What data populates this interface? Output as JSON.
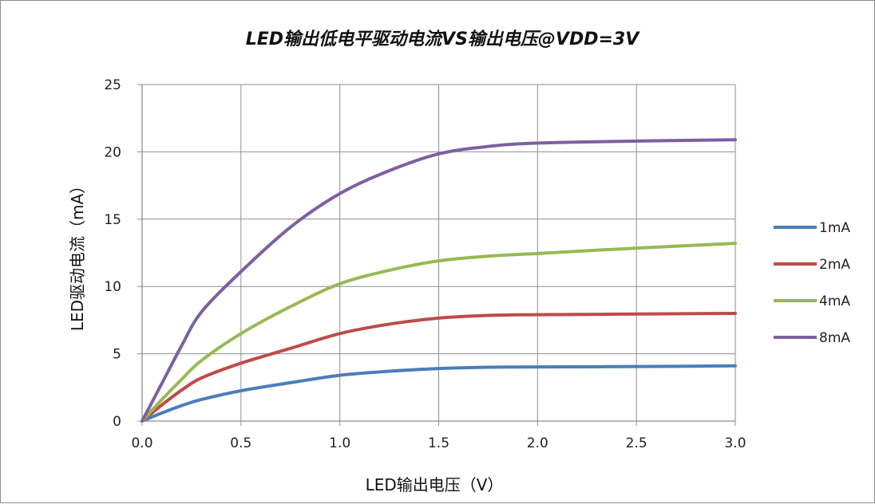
{
  "chart_data": {
    "type": "line",
    "title": "LED输出低电平驱动电流VS输出电压@VDD=3V",
    "xlabel": "LED输出电压（V）",
    "ylabel": "LED驱动电流（mA）",
    "xlim": [
      0,
      3
    ],
    "ylim": [
      0,
      25
    ],
    "x_ticks": [
      "0.0",
      "0.5",
      "1.0",
      "1.5",
      "2.0",
      "2.5",
      "3.0"
    ],
    "y_ticks": [
      "0",
      "5",
      "10",
      "15",
      "20",
      "25"
    ],
    "grid": true,
    "legend_position": "right",
    "series": [
      {
        "name": "1mA",
        "color": "#4a7ebb",
        "points": [
          [
            0.0,
            0.0
          ],
          [
            0.1,
            0.6
          ],
          [
            0.2,
            1.15
          ],
          [
            0.3,
            1.6
          ],
          [
            0.5,
            2.25
          ],
          [
            0.75,
            2.85
          ],
          [
            1.0,
            3.4
          ],
          [
            1.25,
            3.7
          ],
          [
            1.5,
            3.9
          ],
          [
            1.75,
            4.0
          ],
          [
            2.0,
            4.02
          ],
          [
            2.5,
            4.05
          ],
          [
            3.0,
            4.1
          ]
        ]
      },
      {
        "name": "2mA",
        "color": "#be4b48",
        "points": [
          [
            0.0,
            0.0
          ],
          [
            0.1,
            1.2
          ],
          [
            0.2,
            2.3
          ],
          [
            0.3,
            3.2
          ],
          [
            0.5,
            4.3
          ],
          [
            0.75,
            5.4
          ],
          [
            1.0,
            6.5
          ],
          [
            1.25,
            7.2
          ],
          [
            1.5,
            7.65
          ],
          [
            1.75,
            7.85
          ],
          [
            2.0,
            7.9
          ],
          [
            2.5,
            7.95
          ],
          [
            3.0,
            8.0
          ]
        ]
      },
      {
        "name": "4mA",
        "color": "#98b954",
        "points": [
          [
            0.0,
            0.0
          ],
          [
            0.1,
            1.6
          ],
          [
            0.2,
            3.1
          ],
          [
            0.3,
            4.5
          ],
          [
            0.5,
            6.5
          ],
          [
            0.75,
            8.5
          ],
          [
            1.0,
            10.2
          ],
          [
            1.25,
            11.2
          ],
          [
            1.5,
            11.9
          ],
          [
            1.75,
            12.25
          ],
          [
            2.0,
            12.45
          ],
          [
            2.5,
            12.85
          ],
          [
            3.0,
            13.2
          ]
        ]
      },
      {
        "name": "8mA",
        "color": "#7d60a0",
        "points": [
          [
            0.0,
            0.0
          ],
          [
            0.1,
            2.8
          ],
          [
            0.2,
            5.6
          ],
          [
            0.3,
            8.1
          ],
          [
            0.5,
            11.1
          ],
          [
            0.75,
            14.4
          ],
          [
            1.0,
            16.9
          ],
          [
            1.25,
            18.6
          ],
          [
            1.5,
            19.85
          ],
          [
            1.75,
            20.4
          ],
          [
            2.0,
            20.65
          ],
          [
            2.5,
            20.8
          ],
          [
            3.0,
            20.9
          ]
        ]
      }
    ]
  }
}
